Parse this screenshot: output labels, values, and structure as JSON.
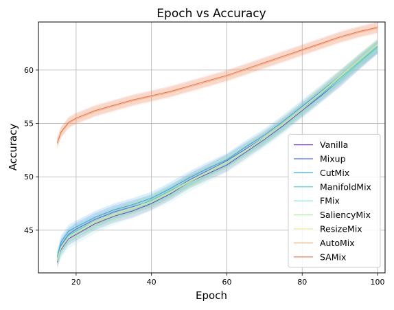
{
  "chart_data": {
    "type": "line",
    "title": "Epoch vs Accuracy",
    "xlabel": "Epoch",
    "ylabel": "Accuracy",
    "xlim": [
      10,
      102
    ],
    "ylim": [
      41,
      64.5
    ],
    "xticks": [
      20,
      40,
      60,
      80,
      100
    ],
    "yticks": [
      45,
      50,
      55,
      60
    ],
    "grid": true,
    "legend_position": "lower-right",
    "shaded_band": true,
    "series": [
      {
        "name": "Vanilla",
        "color": "#7f3fd4",
        "x": [
          15,
          16,
          18,
          20,
          25,
          30,
          35,
          40,
          45,
          50,
          55,
          60,
          65,
          70,
          75,
          80,
          85,
          90,
          95,
          100
        ],
        "y": [
          42.0,
          43.2,
          44.2,
          44.6,
          45.6,
          46.3,
          46.8,
          47.5,
          48.4,
          49.5,
          50.3,
          51.1,
          52.3,
          53.5,
          54.8,
          56.2,
          57.6,
          59.0,
          60.6,
          62.1
        ],
        "band": 0.6
      },
      {
        "name": "Mixup",
        "color": "#4f6ee8",
        "x": [
          15,
          16,
          18,
          20,
          25,
          30,
          35,
          40,
          45,
          50,
          55,
          60,
          65,
          70,
          75,
          80,
          85,
          90,
          95,
          100
        ],
        "y": [
          42.3,
          43.6,
          44.6,
          45.1,
          46.0,
          46.7,
          47.2,
          47.7,
          48.6,
          49.7,
          50.6,
          51.5,
          52.6,
          53.7,
          55.0,
          56.4,
          57.8,
          59.3,
          60.8,
          62.2
        ],
        "band": 0.6
      },
      {
        "name": "CutMix",
        "color": "#2ea6e8",
        "x": [
          15,
          16,
          18,
          20,
          25,
          30,
          35,
          40,
          45,
          50,
          55,
          60,
          65,
          70,
          75,
          80,
          85,
          90,
          95,
          100
        ],
        "y": [
          42.5,
          43.9,
          44.9,
          45.3,
          46.2,
          46.9,
          47.4,
          48.0,
          48.9,
          49.9,
          50.8,
          51.6,
          52.8,
          53.9,
          55.2,
          56.6,
          58.0,
          59.4,
          60.9,
          62.3
        ],
        "band": 0.6
      },
      {
        "name": "ManifoldMix",
        "color": "#3fd1d1",
        "x": [
          15,
          16,
          18,
          20,
          25,
          30,
          35,
          40,
          45,
          50,
          55,
          60,
          65,
          70,
          75,
          80,
          85,
          90,
          95,
          100
        ],
        "y": [
          42.4,
          43.5,
          44.5,
          44.9,
          45.8,
          46.5,
          47.1,
          47.8,
          48.7,
          49.6,
          50.5,
          51.4,
          52.5,
          53.6,
          54.9,
          56.3,
          57.7,
          59.2,
          60.7,
          62.2
        ],
        "band": 0.6
      },
      {
        "name": "FMix",
        "color": "#7fe8d6",
        "x": [
          15,
          16,
          18,
          20,
          25,
          30,
          35,
          40,
          45,
          50,
          55,
          60,
          65,
          70,
          75,
          80,
          85,
          90,
          95,
          100
        ],
        "y": [
          42.1,
          43.0,
          43.9,
          44.3,
          45.3,
          46.1,
          46.7,
          47.4,
          48.2,
          49.2,
          50.1,
          51.0,
          52.1,
          53.3,
          54.6,
          56.0,
          57.5,
          59.0,
          60.6,
          62.1
        ],
        "band": 0.6
      },
      {
        "name": "SaliencyMix",
        "color": "#b3ef9f",
        "x": [
          15,
          16,
          18,
          20,
          25,
          30,
          35,
          40,
          45,
          50,
          55,
          60,
          65,
          70,
          75,
          80,
          85,
          90,
          95,
          100
        ],
        "y": [
          42.2,
          43.3,
          44.3,
          44.7,
          45.7,
          46.4,
          47.0,
          47.6,
          48.5,
          49.5,
          50.4,
          51.3,
          52.4,
          53.6,
          54.9,
          56.3,
          57.8,
          59.3,
          60.8,
          62.3
        ],
        "band": 0.6
      },
      {
        "name": "ResizeMix",
        "color": "#ede69a",
        "x": [
          15,
          16,
          18,
          20,
          25,
          30,
          35,
          40,
          45,
          50,
          55,
          60,
          65,
          70,
          75,
          80,
          85,
          90,
          95,
          100
        ],
        "y": [
          42.3,
          43.4,
          44.4,
          44.8,
          45.8,
          46.5,
          47.1,
          47.7,
          48.6,
          49.6,
          50.5,
          51.4,
          52.5,
          53.7,
          55.0,
          56.4,
          57.9,
          59.4,
          60.9,
          62.4
        ],
        "band": 0.6
      },
      {
        "name": "AutoMix",
        "color": "#f5b07a",
        "x": [
          15,
          16,
          18,
          20,
          25,
          30,
          35,
          40,
          45,
          50,
          55,
          60,
          65,
          70,
          75,
          80,
          85,
          90,
          95,
          100
        ],
        "y": [
          53.1,
          54.1,
          55.0,
          55.4,
          56.1,
          56.6,
          57.1,
          57.5,
          57.9,
          58.4,
          58.9,
          59.4,
          60.0,
          60.6,
          61.2,
          61.8,
          62.4,
          63.0,
          63.5,
          63.9
        ],
        "band": 0.5
      },
      {
        "name": "SAMix",
        "color": "#ef6a45",
        "x": [
          15,
          16,
          18,
          20,
          25,
          30,
          35,
          40,
          45,
          50,
          55,
          60,
          65,
          70,
          75,
          80,
          85,
          90,
          95,
          100
        ],
        "y": [
          53.2,
          54.2,
          55.1,
          55.5,
          56.2,
          56.7,
          57.2,
          57.6,
          58.0,
          58.5,
          59.0,
          59.5,
          60.1,
          60.7,
          61.3,
          61.9,
          62.5,
          63.1,
          63.6,
          64.0
        ],
        "band": 0.5
      }
    ]
  }
}
